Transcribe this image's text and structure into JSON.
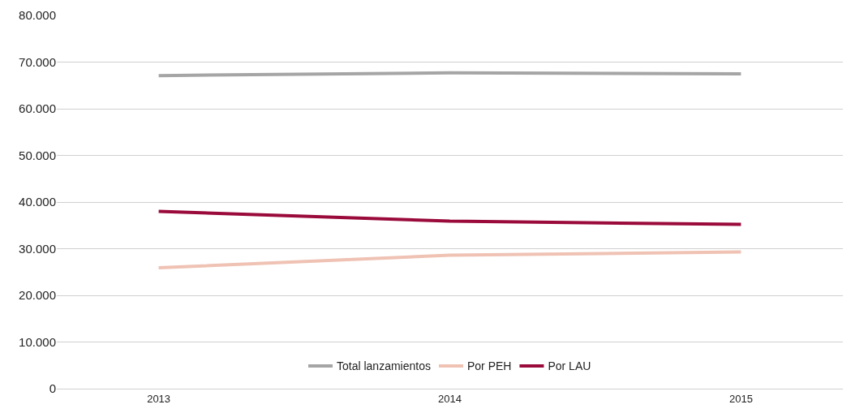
{
  "chart_data": {
    "type": "line",
    "categories": [
      "2013",
      "2014",
      "2015"
    ],
    "series": [
      {
        "name": "Total lanzamientos",
        "color": "#a5a5a5",
        "values": [
          67100,
          67700,
          67500
        ]
      },
      {
        "name": "Por PEH",
        "color": "#efc2b4",
        "values": [
          25900,
          28600,
          29300
        ]
      },
      {
        "name": "Por LAU",
        "color": "#9a0a3a",
        "values": [
          38000,
          35900,
          35200
        ]
      }
    ],
    "ylim": [
      0,
      80000
    ],
    "yticks": [
      {
        "value": 0,
        "label": "0"
      },
      {
        "value": 10000,
        "label": "10.000"
      },
      {
        "value": 20000,
        "label": "20.000"
      },
      {
        "value": 30000,
        "label": "30.000"
      },
      {
        "value": 40000,
        "label": "40.000"
      },
      {
        "value": 50000,
        "label": "50.000"
      },
      {
        "value": 60000,
        "label": "60.000"
      },
      {
        "value": 70000,
        "label": "70.000"
      },
      {
        "value": 80000,
        "label": "80.000"
      }
    ],
    "grid": "y",
    "legend": "bottom",
    "marker": "none",
    "line_style": "solid"
  }
}
